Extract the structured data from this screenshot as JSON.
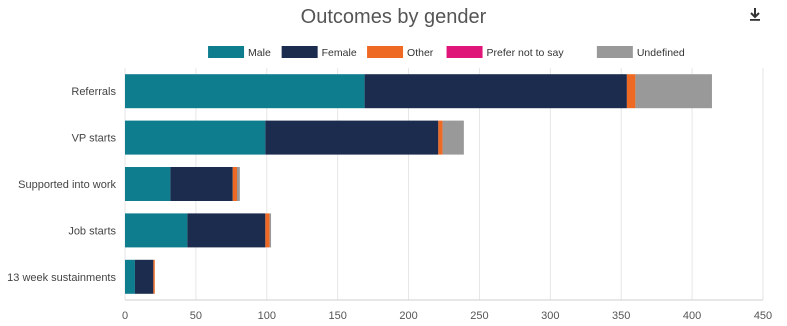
{
  "chart_data": {
    "type": "bar",
    "orientation": "horizontal",
    "stacked": true,
    "title": "Outcomes by gender",
    "categories": [
      "Referrals",
      "VP starts",
      "Supported into work",
      "Job starts",
      "13 week sustainments"
    ],
    "series": [
      {
        "name": "Male",
        "color": "#0e7d8e",
        "values": [
          169,
          99,
          32,
          44,
          7
        ]
      },
      {
        "name": "Female",
        "color": "#1c2c4e",
        "values": [
          185,
          122,
          44,
          55,
          13
        ]
      },
      {
        "name": "Other",
        "color": "#ee6a24",
        "values": [
          6,
          3,
          3,
          3,
          1
        ]
      },
      {
        "name": "Prefer not to say",
        "color": "#e0157a",
        "values": [
          0,
          0,
          0,
          0,
          0
        ]
      },
      {
        "name": "Undefined",
        "color": "#999999",
        "values": [
          54,
          15,
          2,
          1,
          0
        ]
      }
    ],
    "xticks": [
      0,
      50,
      100,
      150,
      200,
      250,
      300,
      350,
      400,
      450
    ],
    "xlim": [
      0,
      450
    ],
    "grid": true,
    "legend": "top-center"
  },
  "icons": {
    "download": "download-icon"
  }
}
